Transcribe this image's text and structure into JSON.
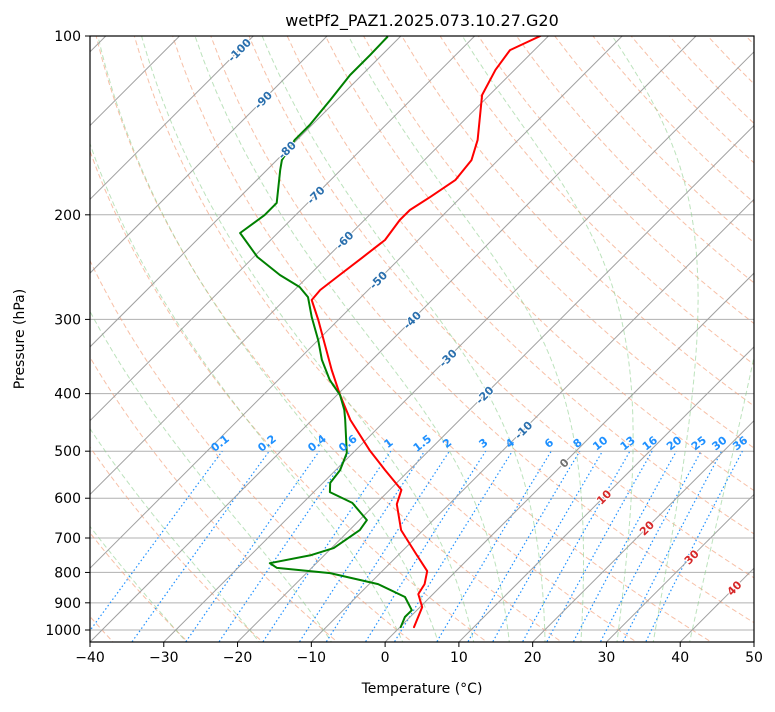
{
  "chart_data": {
    "type": "line",
    "subtype": "skew-T log-p diagram",
    "title": "wetPf2_PAZ1.2025.073.10.27.G20",
    "xlabel": "Temperature (°C)",
    "ylabel": "Pressure (hPa)",
    "xlim": [
      -40,
      50
    ],
    "ylim": [
      1050,
      100
    ],
    "x_ticks": [
      "−40",
      "−30",
      "−20",
      "−10",
      "0",
      "10",
      "20",
      "30",
      "40",
      "50"
    ],
    "x_tick_values": [
      -40,
      -30,
      -20,
      -10,
      0,
      10,
      20,
      30,
      40,
      50
    ],
    "y_ticks": [
      "100",
      "200",
      "300",
      "400",
      "500",
      "600",
      "700",
      "800",
      "900",
      "1000"
    ],
    "y_tick_values": [
      100,
      200,
      300,
      400,
      500,
      600,
      700,
      800,
      900,
      1000
    ],
    "grid": true,
    "isotherm_labels": [
      {
        "text": "-100",
        "value": -100,
        "color": "#2a6fad"
      },
      {
        "text": "-90",
        "value": -90,
        "color": "#2a6fad"
      },
      {
        "text": "-80",
        "value": -80,
        "color": "#2a6fad"
      },
      {
        "text": "-70",
        "value": -70,
        "color": "#2a6fad"
      },
      {
        "text": "-60",
        "value": -60,
        "color": "#2a6fad"
      },
      {
        "text": "-50",
        "value": -50,
        "color": "#2a6fad"
      },
      {
        "text": "-40",
        "value": -40,
        "color": "#2a6fad"
      },
      {
        "text": "-30",
        "value": -30,
        "color": "#2a6fad"
      },
      {
        "text": "-20",
        "value": -20,
        "color": "#2a6fad"
      },
      {
        "text": "-10",
        "value": -10,
        "color": "#2a6fad"
      },
      {
        "text": "0",
        "value": 0,
        "color": "#707070"
      },
      {
        "text": "10",
        "value": 10,
        "color": "#d62728"
      },
      {
        "text": "20",
        "value": 20,
        "color": "#d62728"
      },
      {
        "text": "30",
        "value": 30,
        "color": "#d62728"
      },
      {
        "text": "40",
        "value": 40,
        "color": "#d62728"
      }
    ],
    "mixing_ratio_labels": [
      "0.1",
      "0.2",
      "0.4",
      "0.6",
      "1",
      "1.5",
      "2",
      "3",
      "4",
      "6",
      "8",
      "10",
      "13",
      "16",
      "20",
      "25",
      "30",
      "36"
    ],
    "mixing_ratio_values": [
      0.1,
      0.2,
      0.4,
      0.6,
      1,
      1.5,
      2,
      3,
      4,
      6,
      8,
      10,
      13,
      16,
      20,
      25,
      30,
      36
    ],
    "dry_adiabat_start_temps_c": [
      -50,
      -40,
      -30,
      -20,
      -10,
      0,
      10,
      20,
      30,
      40,
      50,
      60,
      70,
      80,
      90,
      100,
      110,
      120,
      130,
      140,
      150,
      160,
      170,
      180,
      190,
      200
    ],
    "moist_adiabat_start_temps_c": [
      -30,
      -20,
      -10,
      0,
      5,
      10,
      15,
      20,
      25,
      30,
      35,
      40
    ],
    "series": [
      {
        "name": "Temperature",
        "color": "#ff0000",
        "pressure": [
          100,
          105.6,
          114,
          125.7,
          149.7,
          161.8,
          174.8,
          186.6,
          196.3,
          204.1,
          220.5,
          236.4,
          252.6,
          267.7,
          278.3,
          300.7,
          331.3,
          365,
          402,
          443,
          498,
          538,
          581,
          614,
          679,
          745,
          796,
          837,
          870,
          915,
          989
        ],
        "temperature": [
          -61.1,
          -63.3,
          -62.6,
          -61.0,
          -55.5,
          -53.6,
          -53.1,
          -54.2,
          -55.2,
          -55.2,
          -54.5,
          -55.2,
          -55.9,
          -56.5,
          -56.3,
          -52.7,
          -48.4,
          -44.1,
          -39.6,
          -34.8,
          -28.1,
          -23.3,
          -18.4,
          -17.1,
          -13.0,
          -7.7,
          -3.9,
          -2.5,
          -2.0,
          0.3,
          1.9
        ]
      },
      {
        "name": "Dewpoint",
        "color": "#008000",
        "pressure": [
          100.4,
          107.6,
          116.3,
          128.1,
          141.2,
          149.7,
          161.8,
          168.1,
          191,
          200.2,
          214.6,
          235.5,
          252.6,
          264.6,
          275.1,
          297.2,
          325,
          351,
          379.5,
          402,
          426,
          443,
          503.6,
          538,
          565.5,
          586,
          611,
          653,
          679,
          728,
          748,
          772,
          786,
          802,
          837,
          880,
          926,
          951,
          989
        ],
        "temperature": [
          -81.7,
          -81.6,
          -81.6,
          -80.9,
          -80.3,
          -80.3,
          -79.3,
          -78.2,
          -74.2,
          -74.2,
          -75.1,
          -69.5,
          -64.0,
          -59.7,
          -57.2,
          -54.0,
          -50.0,
          -46.8,
          -43.0,
          -39.6,
          -37.0,
          -35.5,
          -30.8,
          -29.4,
          -29.0,
          -27.8,
          -23.3,
          -19.0,
          -18.6,
          -19.7,
          -21.8,
          -26.3,
          -24.7,
          -16.8,
          -8.8,
          -3.4,
          -0.7,
          -0.7,
          0.1
        ]
      }
    ]
  }
}
